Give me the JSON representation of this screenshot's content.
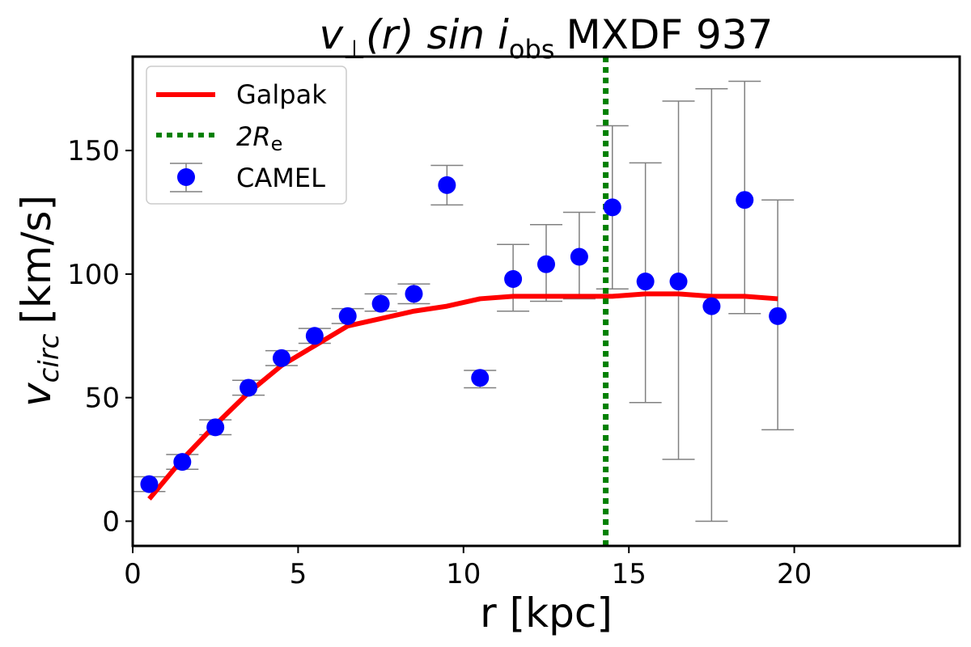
{
  "chart_data": {
    "type": "line+scatter",
    "title_prefix": "v",
    "title_sub": "⊥",
    "title_mid": "(r) sin i",
    "title_obs": "obs",
    "title_suffix": "MXDF 937",
    "xlabel": "r [kpc]",
    "ylabel_main": "v",
    "ylabel_sub": "circ",
    "ylabel_unit": "[km/s]",
    "xlim": [
      0,
      25
    ],
    "ylim": [
      -10,
      188
    ],
    "xticks": [
      0,
      5,
      10,
      15,
      20
    ],
    "yticks": [
      0,
      50,
      100,
      150
    ],
    "legend": {
      "position": "top-left",
      "galpak": "Galpak",
      "re_prefix": "2R",
      "re_sub": "e",
      "camel": "CAMEL"
    },
    "colors": {
      "galpak": "#ff0000",
      "re_line": "#008000",
      "camel": "#0000ff",
      "errorbar": "#808080"
    },
    "re_line_x": 14.3,
    "galpak_series": {
      "name": "Galpak",
      "x": [
        0.5,
        1.5,
        2.5,
        3.5,
        4.5,
        5.5,
        6.5,
        7.5,
        8.5,
        9.5,
        10.5,
        11.5,
        12.5,
        13.5,
        14.5,
        15.5,
        16.5,
        17.5,
        18.5,
        19.5
      ],
      "y": [
        9,
        25,
        39,
        52,
        63,
        71,
        79,
        82,
        85,
        87,
        90,
        91,
        91,
        91,
        91,
        92,
        92,
        91,
        91,
        90
      ]
    },
    "camel_series": {
      "name": "CAMEL",
      "x": [
        0.5,
        1.5,
        2.5,
        3.5,
        4.5,
        5.5,
        6.5,
        7.5,
        8.5,
        9.5,
        10.5,
        11.5,
        12.5,
        13.5,
        14.5,
        15.5,
        16.5,
        17.5,
        18.5,
        19.5
      ],
      "y": [
        15,
        24,
        38,
        54,
        66,
        75,
        83,
        88,
        92,
        136,
        58,
        98,
        104,
        107,
        127,
        97,
        97,
        87,
        130,
        83
      ],
      "err_low": [
        12,
        21,
        35,
        51,
        63,
        72,
        80,
        85,
        88,
        128,
        54,
        85,
        89,
        90,
        94,
        48,
        25,
        0,
        84,
        37
      ],
      "err_high": [
        18,
        27,
        41,
        57,
        69,
        78,
        86,
        92,
        96,
        144,
        61,
        112,
        120,
        125,
        160,
        145,
        170,
        175,
        178,
        130
      ]
    }
  }
}
